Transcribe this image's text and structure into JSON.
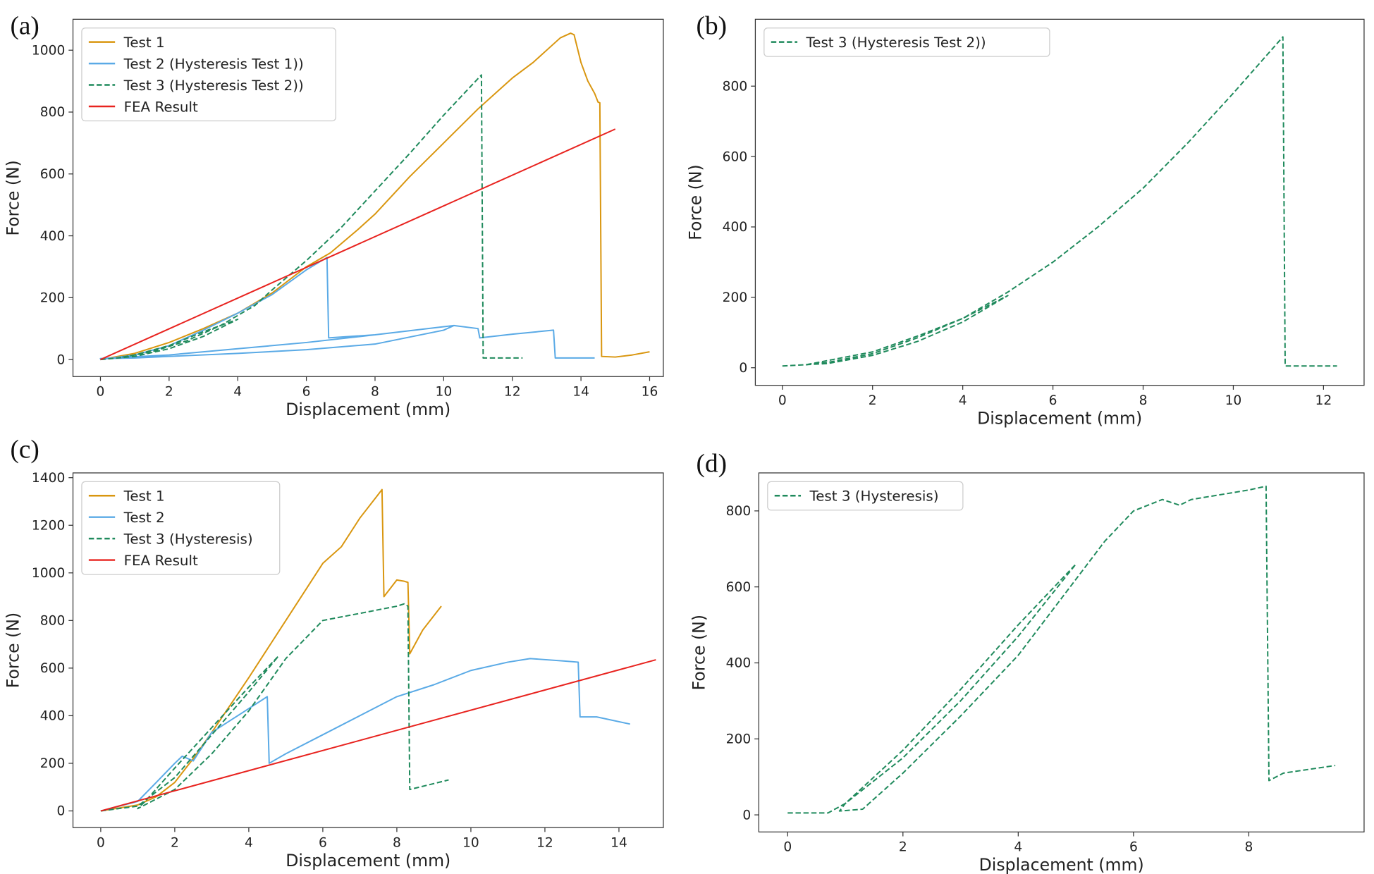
{
  "colors": {
    "test1": "#d9960f",
    "test2": "#5aaae6",
    "test3": "#1f8a5c",
    "fea": "#e8231f"
  },
  "chart_data": [
    {
      "panel": "(a)",
      "type": "line",
      "xlabel": "Displacement (mm)",
      "ylabel": "Force (N)",
      "xlim": [
        -0.8,
        16.4
      ],
      "ylim": [
        -55,
        1100
      ],
      "xticks": [
        "0",
        "2",
        "4",
        "6",
        "8",
        "10",
        "12",
        "14",
        "16"
      ],
      "yticks": [
        "0",
        "200",
        "400",
        "600",
        "800",
        "1000"
      ],
      "legend_position": "top-left",
      "series": [
        {
          "name": "Test 1",
          "color_key": "test1",
          "dash": false,
          "x": [
            0,
            1,
            2,
            3,
            4,
            5,
            6,
            6.7,
            7.5,
            8,
            9,
            10,
            11,
            12,
            12.6,
            13,
            13.4,
            13.7,
            13.8,
            14,
            14.2,
            14.4,
            14.5,
            14.55,
            14.6,
            15,
            15.5,
            16
          ],
          "y": [
            0,
            20,
            55,
            100,
            150,
            215,
            300,
            345,
            420,
            470,
            590,
            700,
            810,
            910,
            960,
            1000,
            1040,
            1055,
            1050,
            960,
            900,
            860,
            832,
            830,
            10,
            8,
            15,
            25
          ]
        },
        {
          "name": "Test 2 (Hysteresis Test 1))",
          "color_key": "test2",
          "dash": false,
          "x": [
            0,
            1,
            2,
            3,
            4,
            5,
            6,
            6.6,
            6.65,
            8,
            10.3,
            10,
            8,
            6,
            4,
            2,
            1,
            0,
            2,
            4,
            6,
            8,
            10.3,
            11,
            11.05,
            12,
            13.2,
            13.25,
            14.4
          ],
          "y": [
            0,
            15,
            45,
            95,
            150,
            210,
            290,
            330,
            70,
            80,
            110,
            95,
            50,
            32,
            20,
            10,
            5,
            3,
            15,
            35,
            55,
            80,
            110,
            100,
            70,
            82,
            95,
            5,
            5
          ]
        },
        {
          "name": "Test 3 (Hysteresis Test 2))",
          "color_key": "test3",
          "dash": true,
          "x": [
            0,
            1,
            2,
            3,
            4,
            3,
            2,
            1,
            0.5,
            1.5,
            2.5,
            3.5,
            4.5,
            5,
            6,
            7,
            8,
            9,
            10,
            11.1,
            11.15,
            12.3
          ],
          "y": [
            0,
            10,
            35,
            75,
            130,
            90,
            45,
            15,
            5,
            25,
            60,
            110,
            175,
            225,
            320,
            425,
            545,
            665,
            790,
            920,
            5,
            5
          ]
        },
        {
          "name": "FEA Result",
          "color_key": "fea",
          "dash": false,
          "x": [
            0,
            15
          ],
          "y": [
            0,
            745
          ]
        }
      ]
    },
    {
      "panel": "(b)",
      "type": "line",
      "xlabel": "Displacement (mm)",
      "ylabel": "Force (N)",
      "xlim": [
        -0.6,
        12.9
      ],
      "ylim": [
        -50,
        990
      ],
      "xticks": [
        "0",
        "2",
        "4",
        "6",
        "8",
        "10",
        "12"
      ],
      "yticks": [
        "0",
        "200",
        "400",
        "600",
        "800"
      ],
      "legend_position": "top-left",
      "series": [
        {
          "name": "Test 3 (Hysteresis Test 2))",
          "color_key": "test3",
          "dash": true,
          "x": [
            0,
            1,
            2,
            3,
            4,
            5,
            4,
            3,
            2,
            1,
            0.5,
            2,
            3,
            4,
            5,
            6,
            7,
            8,
            9,
            10,
            11.1,
            11.15,
            12.3
          ],
          "y": [
            5,
            12,
            35,
            75,
            130,
            205,
            140,
            85,
            40,
            15,
            8,
            45,
            90,
            140,
            215,
            300,
            400,
            510,
            640,
            780,
            940,
            5,
            5
          ]
        }
      ]
    },
    {
      "panel": "(c)",
      "type": "line",
      "xlabel": "Displacement (mm)",
      "ylabel": "Force (N)",
      "xlim": [
        -0.75,
        15.2
      ],
      "ylim": [
        -70,
        1420
      ],
      "xticks": [
        "0",
        "2",
        "4",
        "6",
        "8",
        "10",
        "12",
        "14"
      ],
      "yticks": [
        "0",
        "200",
        "400",
        "600",
        "800",
        "1000",
        "1200",
        "1400"
      ],
      "legend_position": "top-left",
      "series": [
        {
          "name": "Test 1",
          "color_key": "test1",
          "dash": false,
          "x": [
            0,
            1,
            1.5,
            2,
            2.5,
            3,
            4,
            5,
            6,
            6.5,
            7,
            7.5,
            7.6,
            7.65,
            8,
            8.2,
            8.3,
            8.35,
            8.7,
            9.2
          ],
          "y": [
            0,
            25,
            60,
            120,
            220,
            330,
            560,
            800,
            1040,
            1110,
            1230,
            1330,
            1350,
            900,
            970,
            965,
            960,
            660,
            760,
            860
          ]
        },
        {
          "name": "Test 2",
          "color_key": "test2",
          "dash": false,
          "x": [
            0,
            1,
            1.5,
            2,
            2.2,
            2.5,
            3,
            3.6,
            4,
            4.5,
            4.55,
            5,
            6,
            7,
            8,
            9,
            10,
            11,
            11.6,
            12.5,
            12.9,
            12.95,
            13.4,
            14.3
          ],
          "y": [
            0,
            40,
            120,
            200,
            230,
            210,
            330,
            390,
            430,
            480,
            200,
            240,
            320,
            400,
            480,
            530,
            590,
            625,
            640,
            630,
            625,
            395,
            395,
            365
          ]
        },
        {
          "name": "Test 3 (Hysteresis)",
          "color_key": "test3",
          "dash": true,
          "x": [
            0,
            1,
            2,
            3,
            4,
            4.8,
            4,
            3,
            2,
            1.2,
            1,
            2,
            3,
            4,
            5,
            5.5,
            6,
            7,
            8,
            8.2,
            8.3,
            8.35,
            9.4
          ],
          "y": [
            0,
            20,
            140,
            320,
            500,
            650,
            520,
            350,
            180,
            40,
            10,
            90,
            240,
            420,
            640,
            720,
            800,
            830,
            860,
            870,
            860,
            90,
            130
          ]
        },
        {
          "name": "FEA Result",
          "color_key": "fea",
          "dash": false,
          "x": [
            0,
            15
          ],
          "y": [
            0,
            635
          ]
        }
      ]
    },
    {
      "panel": "(d)",
      "type": "line",
      "xlabel": "Displacement (mm)",
      "ylabel": "Force (N)",
      "xlim": [
        -0.5,
        10
      ],
      "ylim": [
        -45,
        900
      ],
      "xticks": [
        "0",
        "2",
        "4",
        "6",
        "8"
      ],
      "yticks": [
        "0",
        "200",
        "400",
        "600",
        "800"
      ],
      "legend_position": "top-left",
      "series": [
        {
          "name": "Test 3 (Hysteresis)",
          "color_key": "test3",
          "dash": true,
          "x": [
            0,
            0.7,
            1,
            2,
            3,
            4,
            5,
            4,
            3,
            2,
            1,
            0.9,
            1.3,
            2,
            3,
            4,
            5,
            5.5,
            6,
            6.5,
            6.8,
            7,
            8,
            8.3,
            8.35,
            8.6,
            9.5
          ],
          "y": [
            5,
            5,
            30,
            170,
            330,
            500,
            660,
            470,
            300,
            150,
            30,
            10,
            15,
            110,
            260,
            420,
            620,
            720,
            800,
            830,
            815,
            830,
            855,
            865,
            90,
            110,
            130
          ]
        }
      ]
    }
  ]
}
